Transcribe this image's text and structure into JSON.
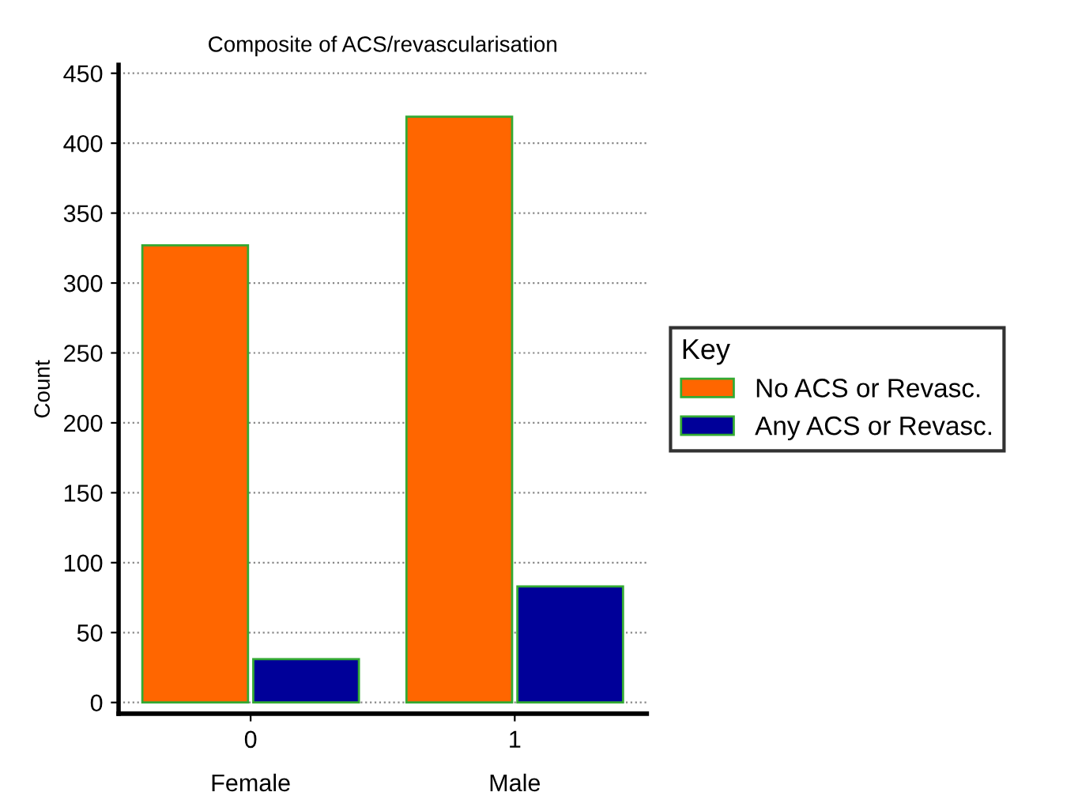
{
  "chart_data": {
    "type": "bar",
    "title": "Composite of ACS/revascularisation",
    "ylabel": "Count",
    "categories": [
      "0\nFemale",
      "1\nMale"
    ],
    "series": [
      {
        "name": "No ACS or Revasc.",
        "color": "#ff6600",
        "values": [
          327,
          419
        ]
      },
      {
        "name": "Any ACS or Revasc.",
        "color": "#000099",
        "values": [
          31,
          83
        ]
      }
    ],
    "ylim": [
      -8,
      456
    ],
    "yticks": [
      0,
      50,
      100,
      150,
      200,
      250,
      300,
      350,
      400,
      450
    ],
    "grid": "y",
    "legend": "right",
    "legend_title": "Key"
  }
}
